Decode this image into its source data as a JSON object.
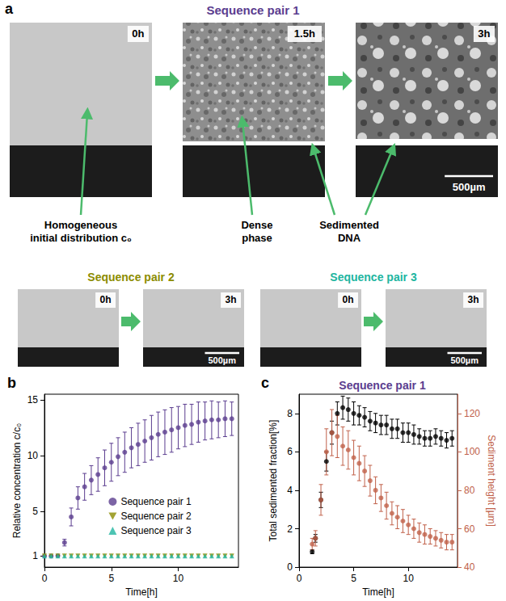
{
  "panel_a": {
    "panel": "a",
    "groups": [
      {
        "title": "Sequence pair 1",
        "color": "#5b3d8f",
        "frames": [
          "0h",
          "1.5h",
          "3h"
        ],
        "scale_bar": "500µm"
      },
      {
        "title": "Sequence pair 2",
        "color": "#8c8c00",
        "frames": [
          "0h",
          "3h"
        ],
        "scale_bar": "500µm"
      },
      {
        "title": "Sequence pair 3",
        "color": "#20b5a0",
        "frames": [
          "0h",
          "3h"
        ],
        "scale_bar": "500µm"
      }
    ],
    "annotations": [
      {
        "lines": [
          "Homogeneous",
          "initial distribution c₀"
        ]
      },
      {
        "lines": [
          "Dense",
          "phase"
        ]
      },
      {
        "lines": [
          "Sedimented",
          "DNA"
        ]
      }
    ]
  },
  "chart_data": [
    {
      "panel": "b",
      "type": "scatter",
      "xlabel": "Time[h]",
      "ylabel": "Relative concentration c/c₀",
      "xlim": [
        0,
        14.5
      ],
      "xticks": [
        0,
        5,
        10
      ],
      "ylim": [
        0,
        15.5
      ],
      "yticks": [
        1,
        5,
        10,
        15
      ],
      "grid": false,
      "legend": "lower right",
      "x": [
        0,
        0.5,
        1,
        1.5,
        2,
        2.5,
        3,
        3.5,
        4,
        4.5,
        5,
        5.5,
        6,
        6.5,
        7,
        7.5,
        8,
        8.5,
        9,
        9.5,
        10,
        10.5,
        11,
        11.5,
        12,
        12.5,
        13,
        13.5,
        14
      ],
      "series": [
        {
          "name": "Sequence pair 1",
          "color": "#5b3d8f",
          "marker": "circle",
          "values": [
            1,
            1,
            1.02,
            2.2,
            4.5,
            6.2,
            7.2,
            7.8,
            8.3,
            8.9,
            9.4,
            9.9,
            10.3,
            10.7,
            11.0,
            11.3,
            11.6,
            11.9,
            12.1,
            12.3,
            12.5,
            12.7,
            12.8,
            13.0,
            13.1,
            13.2,
            13.2,
            13.3,
            13.3
          ],
          "errors": [
            0,
            0,
            0,
            0.3,
            0.8,
            1.0,
            1.2,
            1.3,
            1.5,
            1.6,
            1.7,
            1.7,
            1.8,
            1.8,
            1.9,
            1.9,
            2.0,
            2.0,
            2.0,
            2.0,
            1.9,
            1.9,
            1.8,
            1.8,
            1.7,
            1.7,
            1.6,
            1.6,
            1.5
          ]
        },
        {
          "name": "Sequence pair 2",
          "color": "#8c8c00",
          "marker": "triangle-down",
          "values": [
            1,
            1,
            1,
            1,
            1,
            1,
            1,
            1,
            1,
            1,
            1,
            1,
            1,
            1,
            1,
            1,
            1,
            1,
            1,
            1,
            1,
            1,
            1,
            1,
            1,
            1,
            1,
            1,
            1
          ]
        },
        {
          "name": "Sequence pair 3",
          "color": "#20b5a0",
          "marker": "triangle",
          "values": [
            1,
            1,
            1,
            1,
            1,
            1,
            1,
            1,
            1,
            1,
            1,
            1,
            1,
            1,
            1,
            1,
            1,
            1,
            1,
            1,
            1,
            1,
            1,
            1,
            1,
            1,
            1,
            1,
            1
          ]
        }
      ]
    },
    {
      "panel": "c",
      "type": "scatter",
      "title": "Sequence pair 1",
      "xlabel": "Time[h]",
      "ylabel": "Total sedimented fraction[%]",
      "y2label": "Sediment height [µm]",
      "xlim": [
        0,
        14.5
      ],
      "xticks": [
        0,
        5,
        10
      ],
      "ylim": [
        0,
        9
      ],
      "yticks": [
        0,
        2,
        4,
        6,
        8
      ],
      "y2lim": [
        40,
        130
      ],
      "y2ticks": [
        40,
        60,
        80,
        100,
        120
      ],
      "grid": false,
      "series": [
        {
          "color": "#000000",
          "marker": "circle",
          "x": [
            1.2,
            1.5,
            2,
            2.5,
            3,
            3.5,
            4,
            4.5,
            5,
            5.5,
            6,
            6.5,
            7,
            7.5,
            8,
            8.5,
            9,
            9.5,
            10,
            10.5,
            11,
            11.5,
            12,
            12.5,
            13,
            13.5,
            14
          ],
          "values": [
            0.8,
            1.5,
            3.5,
            5.5,
            7.0,
            8.0,
            8.3,
            8.2,
            8.0,
            7.9,
            7.8,
            7.6,
            7.5,
            7.4,
            7.4,
            7.2,
            7.2,
            7.0,
            7.0,
            6.9,
            6.8,
            6.7,
            6.7,
            6.8,
            6.7,
            6.6,
            6.7
          ],
          "errors": [
            0.1,
            0.2,
            0.4,
            0.5,
            0.6,
            0.6,
            0.6,
            0.6,
            0.6,
            0.5,
            0.5,
            0.5,
            0.5,
            0.5,
            0.5,
            0.5,
            0.5,
            0.5,
            0.5,
            0.5,
            0.4,
            0.4,
            0.4,
            0.4,
            0.4,
            0.4,
            0.4
          ]
        },
        {
          "color": "#c0614a",
          "marker": "circle",
          "axis": "y2",
          "x": [
            1.2,
            1.5,
            2,
            2.5,
            3,
            3.5,
            4,
            4.5,
            5,
            5.5,
            6,
            6.5,
            7,
            7.5,
            8,
            8.5,
            9,
            9.5,
            10,
            10.5,
            11,
            11.5,
            12,
            12.5,
            13,
            13.5,
            14
          ],
          "values": [
            52,
            55,
            75,
            100,
            110,
            108,
            103,
            101,
            97,
            94,
            90,
            85,
            80,
            76,
            72,
            68,
            66,
            64,
            62,
            60,
            58,
            57,
            56,
            55,
            54,
            53,
            53
          ],
          "errors": [
            3,
            4,
            8,
            12,
            12,
            11,
            10,
            10,
            9,
            9,
            8,
            8,
            7,
            7,
            7,
            6,
            6,
            6,
            5,
            5,
            5,
            5,
            4,
            4,
            4,
            4,
            4
          ]
        }
      ]
    }
  ]
}
